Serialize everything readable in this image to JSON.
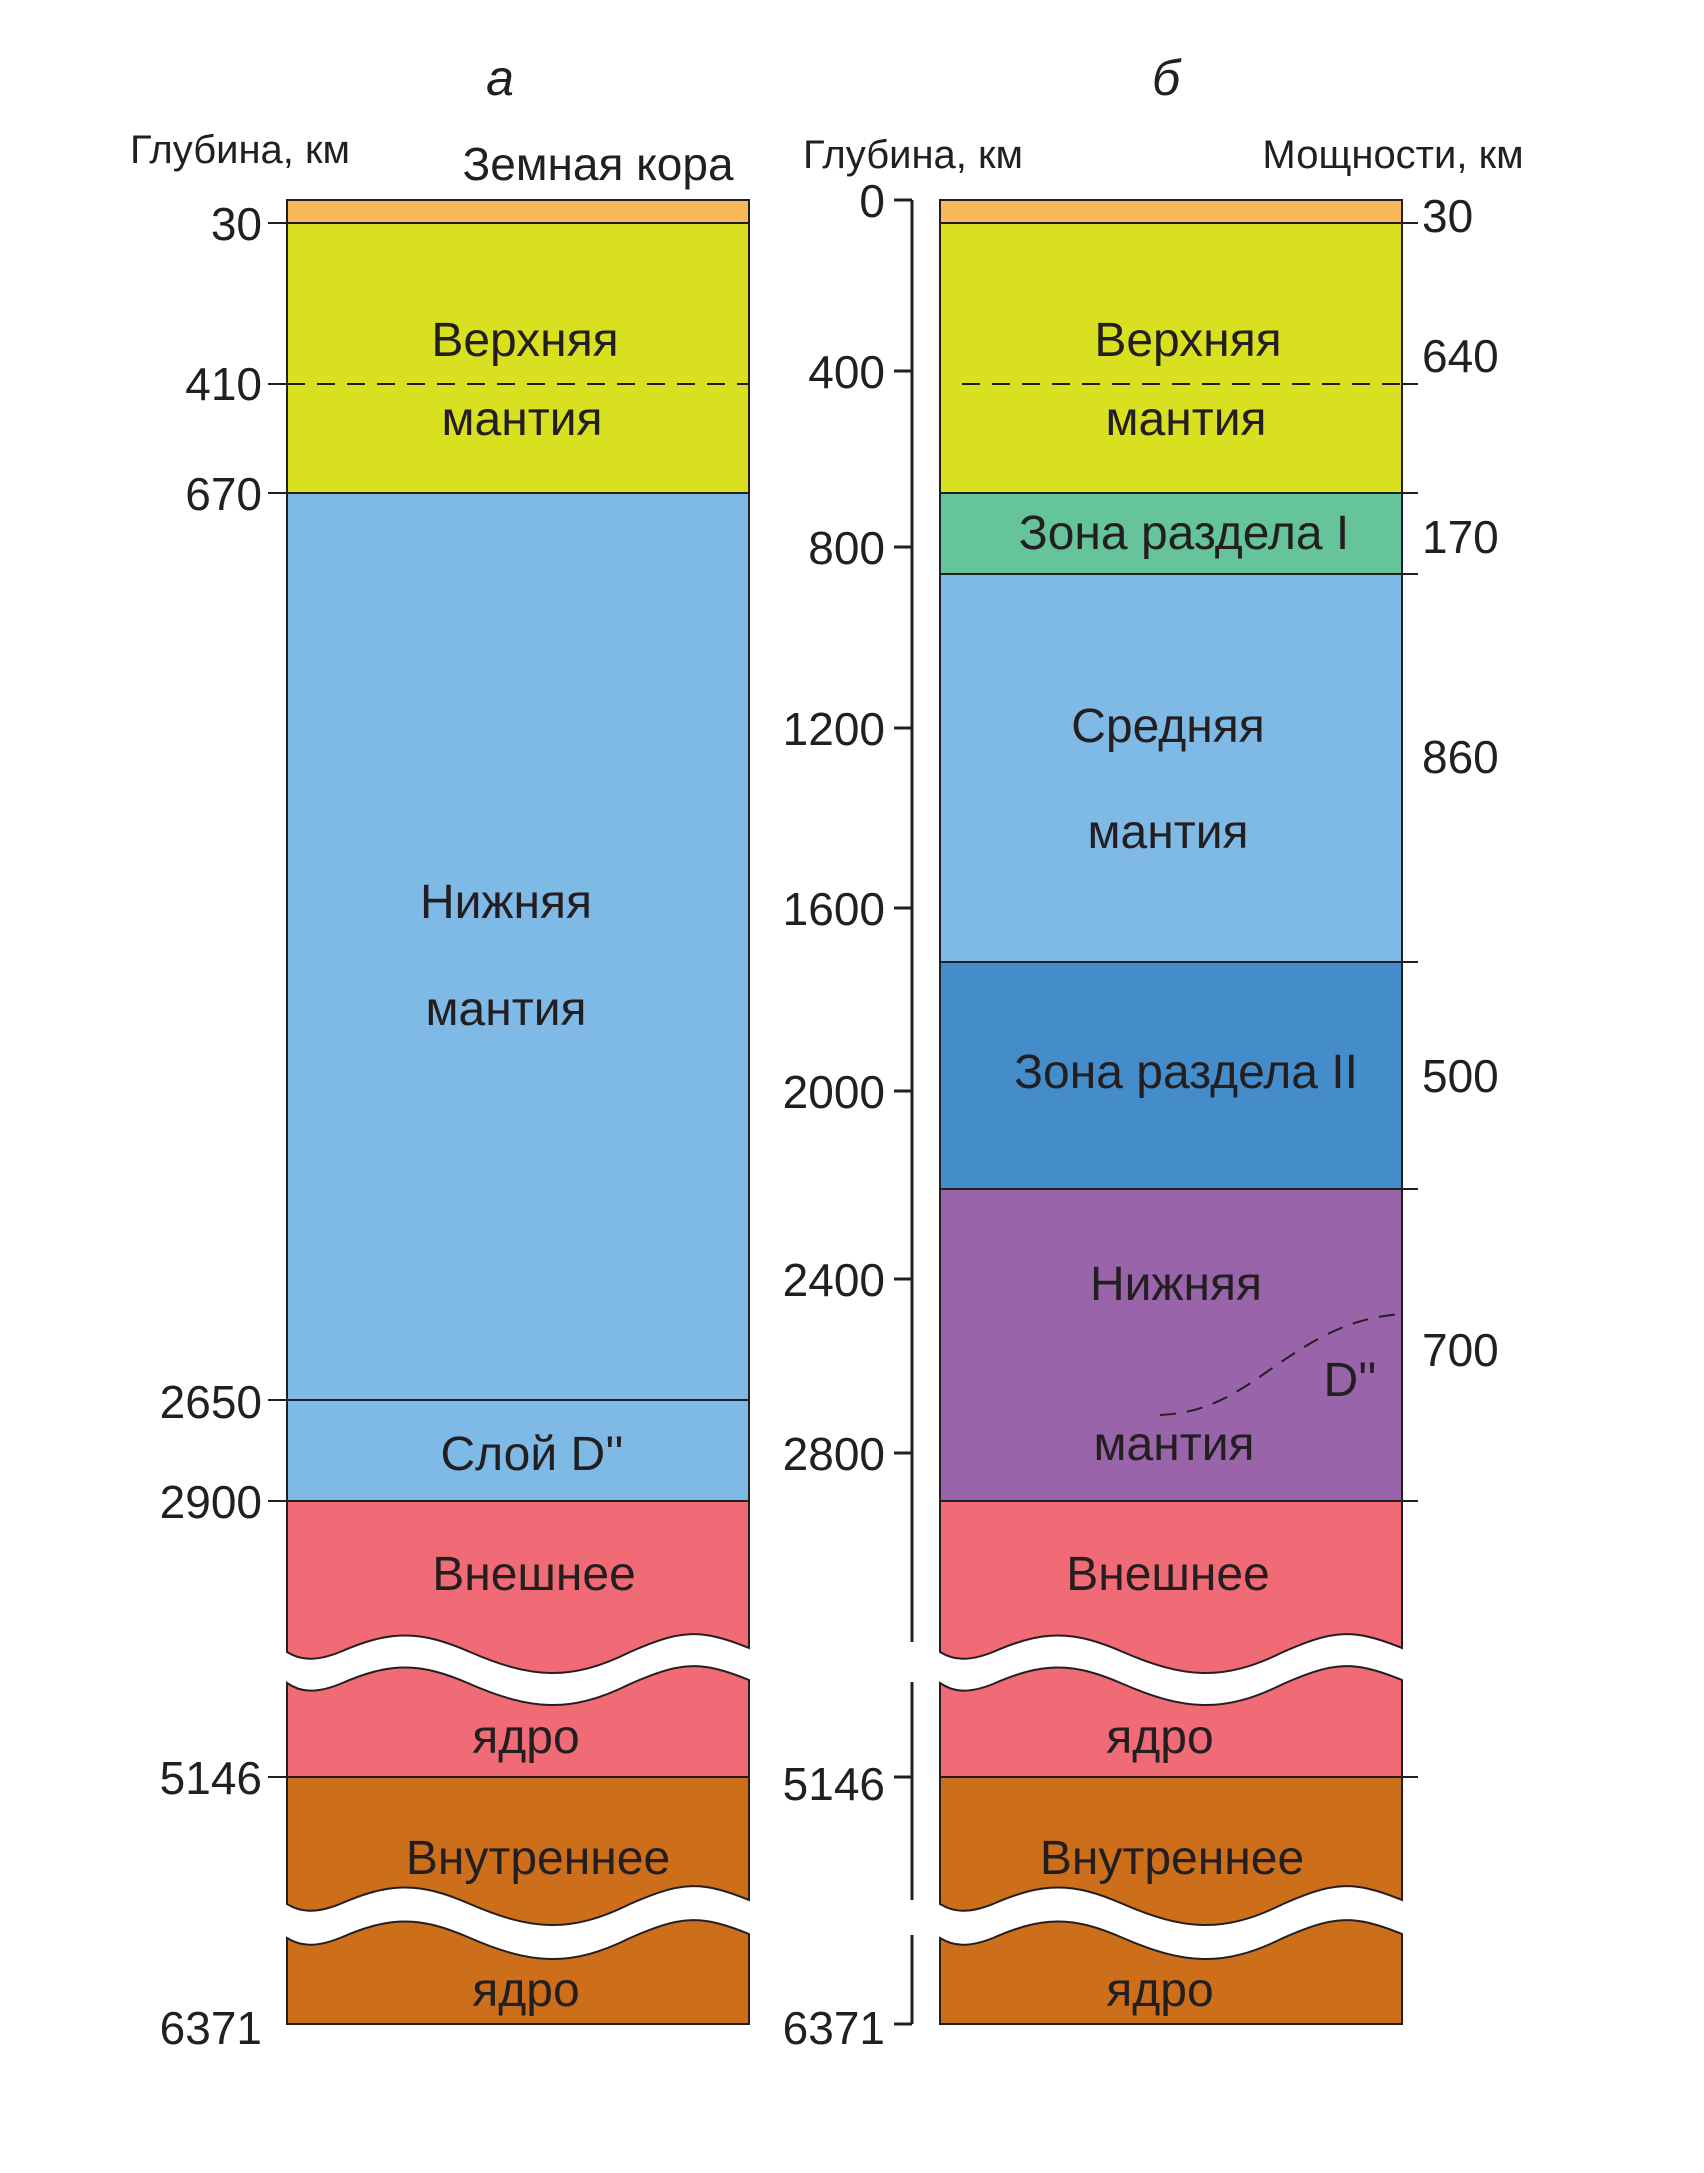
{
  "colors": {
    "crust": "#f9b85a",
    "upper_mantle": "#d8e020",
    "lower_mantle": "#7fb9e5",
    "zone_i": "#66c49b",
    "zone_ii": "#448dca",
    "lower_mantle_b": "#9a64ab",
    "outer_core": "#f06b75",
    "inner_core": "#cd6e1b",
    "ink": "#231f20"
  },
  "panel_a": {
    "letter": "а",
    "depth_header": "Глубина, км",
    "crust_label": "Земная кора",
    "depths": [
      "30",
      "410",
      "670",
      "2650",
      "2900",
      "5146",
      "6371"
    ],
    "layers": {
      "upper_mantle": [
        "Верхняя",
        "мантия"
      ],
      "lower_mantle": [
        "Нижняя",
        "мантия"
      ],
      "d_layer": "Слой D''",
      "outer_core": [
        "Внешнее",
        "ядро"
      ],
      "inner_core": [
        "Внутреннее",
        "ядро"
      ]
    }
  },
  "panel_b": {
    "letter": "б",
    "depth_header": "Глубина, км",
    "thickness_header": "Мощности, км",
    "depth_ticks": [
      "0",
      "400",
      "800",
      "1200",
      "1600",
      "2000",
      "2400",
      "2800",
      "5146",
      "6371"
    ],
    "thicknesses": [
      "30",
      "640",
      "170",
      "860",
      "500",
      "700"
    ],
    "layers": {
      "upper_mantle": [
        "Верхняя",
        "мантия"
      ],
      "zone_i": "Зона раздела I",
      "middle_mantle": [
        "Средняя",
        "мантия"
      ],
      "zone_ii": "Зона раздела II",
      "lower_mantle": [
        "Нижняя",
        "мантия"
      ],
      "d_marker": "D''",
      "outer_core": [
        "Внешнее",
        "ядро"
      ],
      "inner_core": [
        "Внутреннее",
        "ядро"
      ]
    }
  }
}
